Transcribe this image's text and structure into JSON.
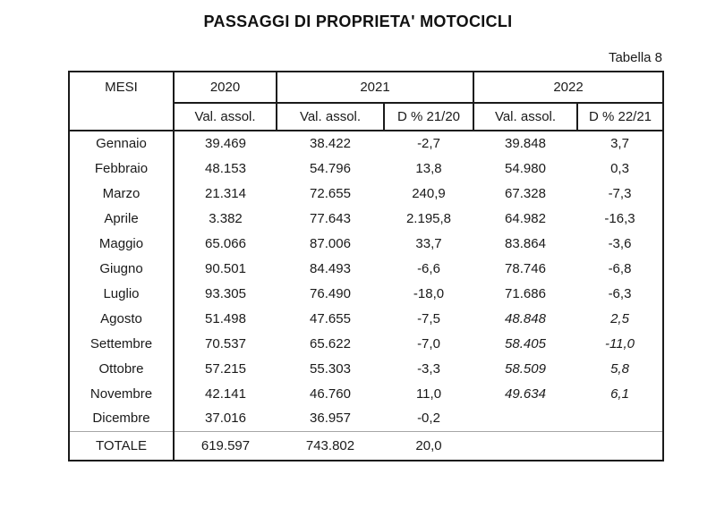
{
  "page": {
    "title": "PASSAGGI DI PROPRIETA' MOTOCICLI",
    "table_label": "Tabella 8"
  },
  "table": {
    "headers": {
      "mesi": "MESI",
      "y2020": "2020",
      "y2021": "2021",
      "y2022": "2022",
      "val_assol_2020": "Val. assol.",
      "val_assol_2021": "Val. assol.",
      "d_21_20": "D % 21/20",
      "val_assol_2022": "Val. assol.",
      "d_22_21": "D % 22/21"
    },
    "rows": [
      {
        "mese": "Gennaio",
        "v2020": "39.469",
        "v2021": "38.422",
        "d2120": "-2,7",
        "v2022": "39.848",
        "d2221": "3,7",
        "italic_2022": false
      },
      {
        "mese": "Febbraio",
        "v2020": "48.153",
        "v2021": "54.796",
        "d2120": "13,8",
        "v2022": "54.980",
        "d2221": "0,3",
        "italic_2022": false
      },
      {
        "mese": "Marzo",
        "v2020": "21.314",
        "v2021": "72.655",
        "d2120": "240,9",
        "v2022": "67.328",
        "d2221": "-7,3",
        "italic_2022": false
      },
      {
        "mese": "Aprile",
        "v2020": "3.382",
        "v2021": "77.643",
        "d2120": "2.195,8",
        "v2022": "64.982",
        "d2221": "-16,3",
        "italic_2022": false
      },
      {
        "mese": "Maggio",
        "v2020": "65.066",
        "v2021": "87.006",
        "d2120": "33,7",
        "v2022": "83.864",
        "d2221": "-3,6",
        "italic_2022": false
      },
      {
        "mese": "Giugno",
        "v2020": "90.501",
        "v2021": "84.493",
        "d2120": "-6,6",
        "v2022": "78.746",
        "d2221": "-6,8",
        "italic_2022": false
      },
      {
        "mese": "Luglio",
        "v2020": "93.305",
        "v2021": "76.490",
        "d2120": "-18,0",
        "v2022": "71.686",
        "d2221": "-6,3",
        "italic_2022": false
      },
      {
        "mese": "Agosto",
        "v2020": "51.498",
        "v2021": "47.655",
        "d2120": "-7,5",
        "v2022": "48.848",
        "d2221": "2,5",
        "italic_2022": true
      },
      {
        "mese": "Settembre",
        "v2020": "70.537",
        "v2021": "65.622",
        "d2120": "-7,0",
        "v2022": "58.405",
        "d2221": "-11,0",
        "italic_2022": true
      },
      {
        "mese": "Ottobre",
        "v2020": "57.215",
        "v2021": "55.303",
        "d2120": "-3,3",
        "v2022": "58.509",
        "d2221": "5,8",
        "italic_2022": true
      },
      {
        "mese": "Novembre",
        "v2020": "42.141",
        "v2021": "46.760",
        "d2120": "11,0",
        "v2022": "49.634",
        "d2221": "6,1",
        "italic_2022": true
      },
      {
        "mese": "Dicembre",
        "v2020": "37.016",
        "v2021": "36.957",
        "d2120": "-0,2",
        "v2022": "",
        "d2221": "",
        "italic_2022": false
      }
    ],
    "total_row": {
      "mese": "TOTALE",
      "v2020": "619.597",
      "v2021": "743.802",
      "d2120": "20,0",
      "v2022": "",
      "d2221": ""
    }
  }
}
